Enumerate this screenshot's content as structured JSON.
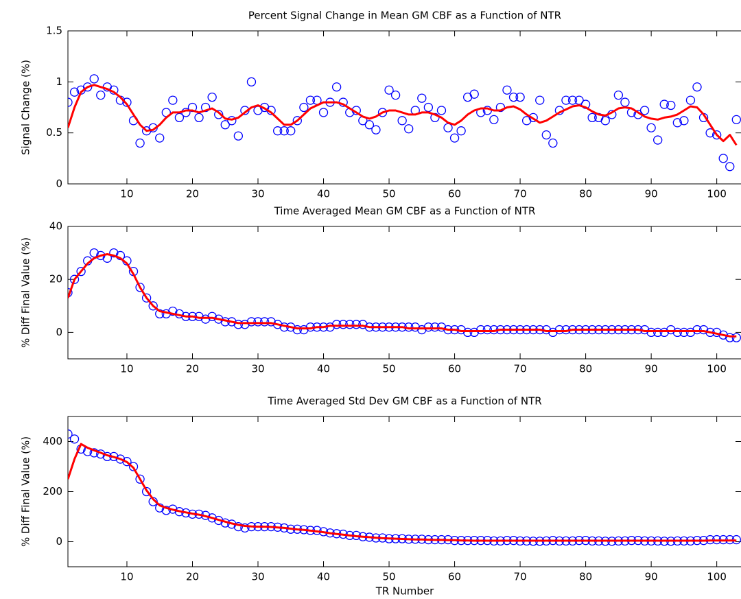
{
  "chart_data": [
    {
      "type": "line",
      "title": "Percent Signal Change in Mean GM CBF as a Function of NTR",
      "y_label": "Signal Change (%)",
      "x": [
        1,
        2,
        3,
        4,
        5,
        6,
        7,
        8,
        9,
        10,
        11,
        12,
        13,
        14,
        15,
        16,
        17,
        18,
        19,
        20,
        21,
        22,
        23,
        24,
        25,
        26,
        27,
        28,
        29,
        30,
        31,
        32,
        33,
        34,
        35,
        36,
        37,
        38,
        39,
        40,
        41,
        42,
        43,
        44,
        45,
        46,
        47,
        48,
        49,
        50,
        51,
        52,
        53,
        54,
        55,
        56,
        57,
        58,
        59,
        60,
        61,
        62,
        63,
        64,
        65,
        66,
        67,
        68,
        69,
        70,
        71,
        72,
        73,
        74,
        75,
        76,
        77,
        78,
        79,
        80,
        81,
        82,
        83,
        84,
        85,
        86,
        87,
        88,
        89,
        90,
        91,
        92,
        93,
        94,
        95,
        96,
        97,
        98,
        99,
        100,
        101,
        102,
        103
      ],
      "series": [
        {
          "mode": "markers",
          "color": "#0000ff",
          "values": [
            0.8,
            0.9,
            0.92,
            0.95,
            1.03,
            0.87,
            0.95,
            0.92,
            0.82,
            0.8,
            0.62,
            0.4,
            0.52,
            0.55,
            0.45,
            0.7,
            0.82,
            0.65,
            0.7,
            0.75,
            0.65,
            0.75,
            0.85,
            0.68,
            0.58,
            0.62,
            0.47,
            0.72,
            1.0,
            0.72,
            0.75,
            0.72,
            0.52,
            0.52,
            0.52,
            0.62,
            0.75,
            0.82,
            0.82,
            0.7,
            0.8,
            0.95,
            0.8,
            0.7,
            0.72,
            0.62,
            0.58,
            0.53,
            0.7,
            0.92,
            0.87,
            0.62,
            0.54,
            0.72,
            0.84,
            0.75,
            0.65,
            0.72,
            0.55,
            0.45,
            0.52,
            0.85,
            0.88,
            0.7,
            0.72,
            0.63,
            0.75,
            0.92,
            0.85,
            0.85,
            0.62,
            0.65,
            0.82,
            0.48,
            0.4,
            0.72,
            0.82,
            0.82,
            0.82,
            0.78,
            0.65,
            0.65,
            0.62,
            0.68,
            0.87,
            0.8,
            0.7,
            0.68,
            0.72,
            0.55,
            0.43,
            0.78,
            0.77,
            0.6,
            0.62,
            0.82,
            0.95,
            0.65,
            0.5,
            0.48,
            0.25,
            0.17,
            0.63
          ]
        },
        {
          "mode": "line",
          "color": "#ff0000",
          "values": [
            0.55,
            0.75,
            0.9,
            0.95,
            0.97,
            0.95,
            0.93,
            0.9,
            0.85,
            0.78,
            0.68,
            0.58,
            0.52,
            0.53,
            0.58,
            0.65,
            0.7,
            0.7,
            0.72,
            0.72,
            0.7,
            0.72,
            0.74,
            0.7,
            0.64,
            0.63,
            0.65,
            0.7,
            0.75,
            0.77,
            0.74,
            0.7,
            0.64,
            0.58,
            0.58,
            0.62,
            0.68,
            0.74,
            0.77,
            0.8,
            0.8,
            0.8,
            0.78,
            0.74,
            0.7,
            0.66,
            0.64,
            0.66,
            0.7,
            0.72,
            0.72,
            0.7,
            0.68,
            0.68,
            0.7,
            0.7,
            0.68,
            0.65,
            0.6,
            0.58,
            0.62,
            0.68,
            0.72,
            0.74,
            0.74,
            0.72,
            0.72,
            0.75,
            0.76,
            0.73,
            0.68,
            0.64,
            0.6,
            0.62,
            0.66,
            0.7,
            0.73,
            0.76,
            0.77,
            0.75,
            0.71,
            0.68,
            0.67,
            0.7,
            0.74,
            0.75,
            0.74,
            0.7,
            0.66,
            0.64,
            0.63,
            0.65,
            0.66,
            0.68,
            0.72,
            0.76,
            0.75,
            0.68,
            0.58,
            0.48,
            0.42,
            0.48,
            0.38
          ]
        }
      ],
      "xlim": [
        1,
        103.7
      ],
      "xticks": [
        10,
        20,
        30,
        40,
        50,
        60,
        70,
        80,
        90,
        100
      ],
      "ylim": [
        0,
        1.5
      ],
      "yticks": [
        0,
        0.5,
        1,
        1.5
      ]
    },
    {
      "type": "line",
      "title": "Time Averaged Mean GM CBF as a Function of NTR",
      "y_label": "% Diff Final Value (%)",
      "x": [
        1,
        2,
        3,
        4,
        5,
        6,
        7,
        8,
        9,
        10,
        11,
        12,
        13,
        14,
        15,
        16,
        17,
        18,
        19,
        20,
        21,
        22,
        23,
        24,
        25,
        26,
        27,
        28,
        29,
        30,
        31,
        32,
        33,
        34,
        35,
        36,
        37,
        38,
        39,
        40,
        41,
        42,
        43,
        44,
        45,
        46,
        47,
        48,
        49,
        50,
        51,
        52,
        53,
        54,
        55,
        56,
        57,
        58,
        59,
        60,
        61,
        62,
        63,
        64,
        65,
        66,
        67,
        68,
        69,
        70,
        71,
        72,
        73,
        74,
        75,
        76,
        77,
        78,
        79,
        80,
        81,
        82,
        83,
        84,
        85,
        86,
        87,
        88,
        89,
        90,
        91,
        92,
        93,
        94,
        95,
        96,
        97,
        98,
        99,
        100,
        101,
        102,
        103
      ],
      "series": [
        {
          "mode": "markers",
          "color": "#0000ff",
          "values": [
            15,
            20,
            23,
            27,
            30,
            29,
            28,
            30,
            29,
            27,
            23,
            17,
            13,
            10,
            7,
            7,
            8,
            7,
            6,
            6,
            6,
            5,
            6,
            5,
            4,
            4,
            3,
            3,
            4,
            4,
            4,
            4,
            3,
            2,
            2,
            1,
            1,
            2,
            2,
            2,
            2,
            3,
            3,
            3,
            3,
            3,
            2,
            2,
            2,
            2,
            2,
            2,
            2,
            2,
            1,
            2,
            2,
            2,
            1,
            1,
            1,
            0,
            0,
            1,
            1,
            1,
            1,
            1,
            1,
            1,
            1,
            1,
            1,
            1,
            0,
            1,
            1,
            1,
            1,
            1,
            1,
            1,
            1,
            1,
            1,
            1,
            1,
            1,
            1,
            0,
            0,
            0,
            1,
            0,
            0,
            0,
            1,
            1,
            0,
            0,
            -1,
            -2,
            -2
          ]
        },
        {
          "mode": "line",
          "color": "#ff0000",
          "values": [
            13,
            20,
            23,
            26,
            28,
            29,
            29.5,
            29,
            28,
            26,
            22,
            17,
            13,
            10,
            8,
            7.5,
            7,
            6.5,
            6,
            6,
            5.5,
            5.5,
            5.5,
            5,
            4.5,
            4,
            3.5,
            3.5,
            3.5,
            3.5,
            3.5,
            3.5,
            3,
            2.5,
            2,
            1.5,
            1.5,
            1.5,
            2,
            2,
            2.5,
            2.5,
            2.5,
            2.5,
            2.5,
            2.5,
            2,
            2,
            2,
            2,
            2,
            2,
            1.5,
            1.5,
            1.5,
            1.5,
            1.5,
            1.5,
            1,
            1,
            0.5,
            0.5,
            0.5,
            0.5,
            0.5,
            0.5,
            1,
            1,
            1,
            1,
            1,
            1,
            1,
            0.5,
            0.5,
            0.5,
            0.5,
            1,
            1,
            1,
            1,
            1,
            1,
            1,
            1,
            1,
            1,
            1,
            0.5,
            0.5,
            0.5,
            0.5,
            0.5,
            0.5,
            0.5,
            0.5,
            0.5,
            0.5,
            0,
            -0.5,
            -1,
            -1.5,
            -1.5
          ]
        }
      ],
      "xlim": [
        1,
        103.7
      ],
      "xticks": [
        10,
        20,
        30,
        40,
        50,
        60,
        70,
        80,
        90,
        100
      ],
      "ylim": [
        -10,
        40
      ],
      "yticks": [
        0,
        20,
        40
      ]
    },
    {
      "type": "line",
      "title": "Time Averaged Std Dev GM CBF as a Function of NTR",
      "y_label": "% Diff Final Value (%)",
      "x_label": "TR Number",
      "x": [
        1,
        2,
        3,
        4,
        5,
        6,
        7,
        8,
        9,
        10,
        11,
        12,
        13,
        14,
        15,
        16,
        17,
        18,
        19,
        20,
        21,
        22,
        23,
        24,
        25,
        26,
        27,
        28,
        29,
        30,
        31,
        32,
        33,
        34,
        35,
        36,
        37,
        38,
        39,
        40,
        41,
        42,
        43,
        44,
        45,
        46,
        47,
        48,
        49,
        50,
        51,
        52,
        53,
        54,
        55,
        56,
        57,
        58,
        59,
        60,
        61,
        62,
        63,
        64,
        65,
        66,
        67,
        68,
        69,
        70,
        71,
        72,
        73,
        74,
        75,
        76,
        77,
        78,
        79,
        80,
        81,
        82,
        83,
        84,
        85,
        86,
        87,
        88,
        89,
        90,
        91,
        92,
        93,
        94,
        95,
        96,
        97,
        98,
        99,
        100,
        101,
        102,
        103
      ],
      "series": [
        {
          "mode": "markers",
          "color": "#0000ff",
          "values": [
            430,
            410,
            370,
            360,
            355,
            350,
            340,
            340,
            330,
            320,
            300,
            250,
            200,
            160,
            135,
            125,
            130,
            120,
            115,
            110,
            110,
            105,
            95,
            85,
            75,
            70,
            60,
            55,
            60,
            60,
            60,
            60,
            58,
            55,
            50,
            50,
            48,
            45,
            45,
            40,
            35,
            32,
            30,
            25,
            25,
            20,
            18,
            15,
            15,
            12,
            12,
            12,
            10,
            10,
            10,
            8,
            8,
            8,
            8,
            5,
            5,
            5,
            5,
            5,
            5,
            3,
            3,
            5,
            5,
            3,
            3,
            2,
            2,
            3,
            5,
            3,
            3,
            3,
            5,
            5,
            3,
            3,
            2,
            2,
            3,
            3,
            5,
            5,
            3,
            3,
            3,
            2,
            2,
            3,
            3,
            3,
            5,
            5,
            8,
            8,
            8,
            8,
            8
          ]
        },
        {
          "mode": "line",
          "color": "#ff0000",
          "values": [
            250,
            330,
            390,
            375,
            365,
            355,
            345,
            338,
            330,
            318,
            295,
            250,
            205,
            170,
            145,
            135,
            128,
            122,
            117,
            112,
            108,
            102,
            95,
            87,
            80,
            73,
            67,
            63,
            61,
            60,
            60,
            59,
            57,
            55,
            52,
            49,
            47,
            44,
            41,
            38,
            34,
            31,
            28,
            25,
            22,
            20,
            18,
            16,
            14,
            13,
            12,
            11,
            10,
            9,
            9,
            8,
            7,
            7,
            6,
            6,
            5,
            5,
            4,
            4,
            4,
            4,
            4,
            4,
            4,
            4,
            4,
            4,
            4,
            4,
            4,
            4,
            4,
            4,
            4,
            4,
            4,
            4,
            4,
            4,
            4,
            4,
            4,
            4,
            4,
            4,
            4,
            4,
            4,
            4,
            4,
            4,
            4,
            4,
            5,
            5,
            5,
            5,
            5
          ]
        }
      ],
      "xlim": [
        1,
        103.7
      ],
      "xticks": [
        10,
        20,
        30,
        40,
        50,
        60,
        70,
        80,
        90,
        100
      ],
      "ylim": [
        -100,
        500
      ],
      "yticks": [
        0,
        200,
        400
      ]
    }
  ]
}
